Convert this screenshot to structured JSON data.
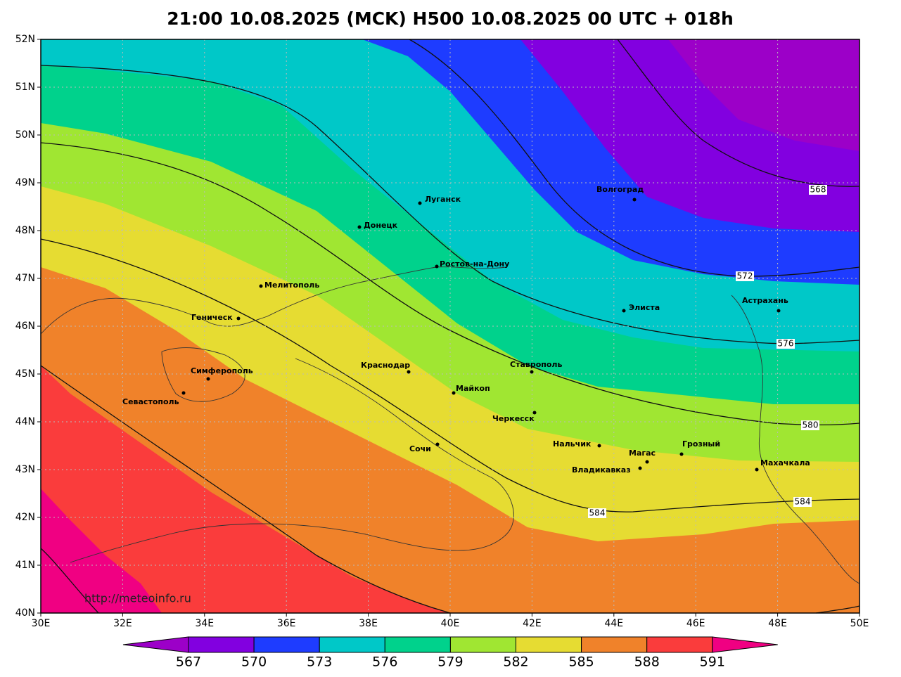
{
  "title": "21:00 10.08.2025 (MCK) H500  10.08.2025 00 UTC + 018h",
  "lat_labels": [
    "52N",
    "51N",
    "50N",
    "49N",
    "48N",
    "47N",
    "46N",
    "45N",
    "44N",
    "43N",
    "42N",
    "41N",
    "40N"
  ],
  "lon_labels": [
    "30E",
    "32E",
    "34E",
    "36E",
    "38E",
    "40E",
    "42E",
    "44E",
    "46E",
    "48E",
    "50E"
  ],
  "cities": [
    "Луганск",
    "Донецк",
    "Ростов-на-Дону",
    "Мелитополь",
    "Геническ",
    "Симферополь",
    "Севастополь",
    "Краснодар",
    "Майкоп",
    "Ставрополь",
    "Черкесск",
    "Нальчик",
    "Магас",
    "Грозный",
    "Владикавказ",
    "Махачкала",
    "Элиста",
    "Волгоград",
    "Астрахань",
    "Сочи"
  ],
  "contour_labels": [
    "568",
    "572",
    "576",
    "580",
    "584",
    "584"
  ],
  "colorbar": {
    "labels": [
      "567",
      "570",
      "573",
      "576",
      "579",
      "582",
      "585",
      "588",
      "591"
    ],
    "colors": [
      "#9c00c8",
      "#8200e0",
      "#1e3cff",
      "#00c8c8",
      "#00d28c",
      "#a0e632",
      "#e6dc32",
      "#f0822a",
      "#fa3c3c",
      "#f00082"
    ]
  },
  "watermark": "http://meteoinfo.ru"
}
